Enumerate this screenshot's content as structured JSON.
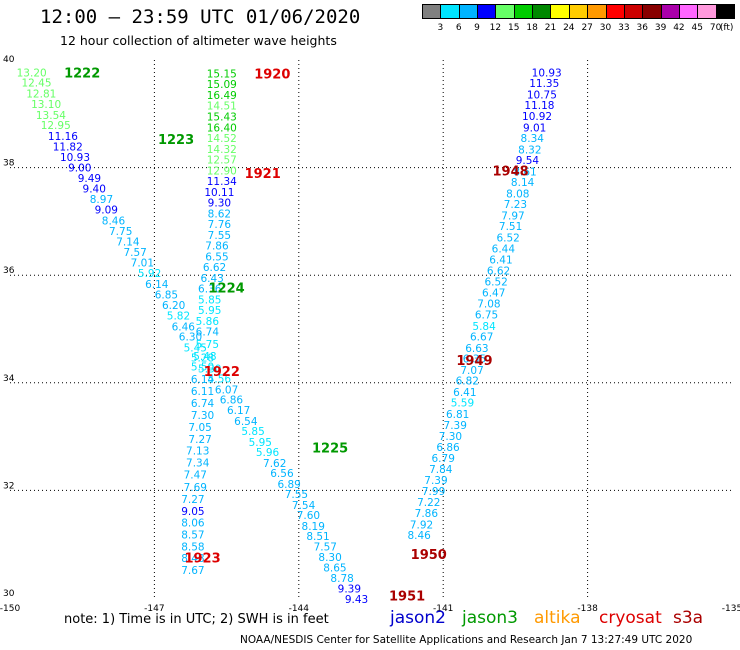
{
  "header": {
    "title": "12:00 – 23:59 UTC 01/06/2020",
    "subtitle": "12 hour collection of altimeter wave heights"
  },
  "color_scale": {
    "labels": [
      "3",
      "6",
      "9",
      "12",
      "15",
      "18",
      "21",
      "24",
      "27",
      "30",
      "33",
      "36",
      "39",
      "42",
      "45",
      "70",
      "(ft)"
    ],
    "colors": [
      "#808080",
      "#00e5ff",
      "#00b4ff",
      "#0000ff",
      "#66ff66",
      "#00cc00",
      "#008800",
      "#ffff00",
      "#ffcc00",
      "#ff9900",
      "#ff0000",
      "#cc0000",
      "#880000",
      "#aa00aa",
      "#ff66ff",
      "#ff99dd",
      "#000000"
    ]
  },
  "footer": {
    "note": "note: 1) Time is in UTC; 2) SWH is in feet",
    "legend": [
      {
        "name": "jason2",
        "color": "#0000cc"
      },
      {
        "name": "jason3",
        "color": "#009900"
      },
      {
        "name": "altika",
        "color": "#ff9900"
      },
      {
        "name": "cryosat",
        "color": "#dd0000"
      },
      {
        "name": "s3a",
        "color": "#aa0000"
      }
    ],
    "credit": "NOAA/NESDIS Center for Satellite Applications and Research    Jan  7 13:27:49 UTC 2020"
  },
  "chart_data": {
    "type": "scatter",
    "title": "12:00 – 23:59 UTC 01/06/2020",
    "xlabel": "",
    "ylabel": "",
    "xlim": [
      -150,
      -135
    ],
    "ylim": [
      30,
      40
    ],
    "x_ticks": [
      -150,
      -147,
      -144,
      -141,
      -138,
      -135
    ],
    "x_tick_labels": [
      "-150",
      "-147",
      "-144",
      "-141",
      "-138",
      "-135"
    ],
    "y_ticks": [
      30,
      32,
      34,
      36,
      38,
      40
    ],
    "y_tick_labels": [
      "30",
      "32",
      "34",
      "36",
      "38",
      "40"
    ],
    "grid": "dotted",
    "time_labels": [
      {
        "text": "1222",
        "lon": -148.5,
        "lat": 39.77,
        "color": "#009900"
      },
      {
        "text": "1223",
        "lon": -146.55,
        "lat": 38.53,
        "color": "#009900"
      },
      {
        "text": "1224",
        "lon": -145.5,
        "lat": 35.77,
        "color": "#009900"
      },
      {
        "text": "1225",
        "lon": -143.35,
        "lat": 32.8,
        "color": "#009900"
      },
      {
        "text": "1920",
        "lon": -144.55,
        "lat": 39.75,
        "color": "#dd0000"
      },
      {
        "text": "1921",
        "lon": -144.75,
        "lat": 37.9,
        "color": "#dd0000"
      },
      {
        "text": "1922",
        "lon": -145.6,
        "lat": 34.22,
        "color": "#dd0000"
      },
      {
        "text": "1923",
        "lon": -146.0,
        "lat": 30.75,
        "color": "#dd0000"
      },
      {
        "text": "1948",
        "lon": -139.6,
        "lat": 37.95,
        "color": "#aa0000"
      },
      {
        "text": "1949",
        "lon": -140.35,
        "lat": 34.42,
        "color": "#aa0000"
      },
      {
        "text": "1950",
        "lon": -141.3,
        "lat": 30.82,
        "color": "#aa0000"
      },
      {
        "text": "1951",
        "lon": -141.75,
        "lat": 30.05,
        "color": "#aa0000"
      }
    ],
    "series": [
      {
        "name": "jason3",
        "color_by_value": true,
        "points": [
          {
            "lon": -149.55,
            "lat": 39.77,
            "swh": 13.2
          },
          {
            "lon": -149.45,
            "lat": 39.58,
            "swh": 12.45
          },
          {
            "lon": -149.35,
            "lat": 39.38,
            "swh": 12.81
          },
          {
            "lon": -149.25,
            "lat": 39.18,
            "swh": 13.1
          },
          {
            "lon": -149.15,
            "lat": 38.98,
            "swh": 13.54
          },
          {
            "lon": -149.05,
            "lat": 38.79,
            "swh": 12.95
          },
          {
            "lon": -148.9,
            "lat": 38.59,
            "swh": 11.16
          },
          {
            "lon": -148.8,
            "lat": 38.39,
            "swh": 11.82
          },
          {
            "lon": -148.65,
            "lat": 38.2,
            "swh": 10.93
          },
          {
            "lon": -148.55,
            "lat": 38.0,
            "swh": 9.0
          },
          {
            "lon": -148.35,
            "lat": 37.81,
            "swh": 9.49
          },
          {
            "lon": -148.25,
            "lat": 37.61,
            "swh": 9.4
          },
          {
            "lon": -148.1,
            "lat": 37.42,
            "swh": 8.97
          },
          {
            "lon": -148.0,
            "lat": 37.22,
            "swh": 9.09
          },
          {
            "lon": -147.85,
            "lat": 37.02,
            "swh": 8.46
          },
          {
            "lon": -147.7,
            "lat": 36.82,
            "swh": 7.75
          },
          {
            "lon": -147.55,
            "lat": 36.63,
            "swh": 7.14
          },
          {
            "lon": -147.4,
            "lat": 36.43,
            "swh": 7.57
          },
          {
            "lon": -147.25,
            "lat": 36.24,
            "swh": 7.01
          },
          {
            "lon": -147.1,
            "lat": 36.04,
            "swh": 5.92
          },
          {
            "lon": -146.95,
            "lat": 35.84,
            "swh": 6.14
          },
          {
            "lon": -146.75,
            "lat": 35.64,
            "swh": 6.85
          },
          {
            "lon": -146.6,
            "lat": 35.45,
            "swh": 6.2
          },
          {
            "lon": -146.5,
            "lat": 35.25,
            "swh": 5.82
          },
          {
            "lon": -146.4,
            "lat": 35.05,
            "swh": 6.46
          },
          {
            "lon": -146.25,
            "lat": 34.86,
            "swh": 6.3
          },
          {
            "lon": -146.15,
            "lat": 34.66,
            "swh": 5.45
          },
          {
            "lon": -146.0,
            "lat": 34.47,
            "swh": 5.28
          },
          {
            "lon": -145.85,
            "lat": 34.27,
            "swh": 5.3
          },
          {
            "lon": -145.65,
            "lat": 34.08,
            "swh": 5.56
          },
          {
            "lon": -145.5,
            "lat": 33.88,
            "swh": 6.07
          },
          {
            "lon": -145.4,
            "lat": 33.69,
            "swh": 6.86
          },
          {
            "lon": -145.25,
            "lat": 33.49,
            "swh": 6.17
          },
          {
            "lon": -145.1,
            "lat": 33.29,
            "swh": 6.54
          },
          {
            "lon": -144.95,
            "lat": 33.1,
            "swh": 5.85
          },
          {
            "lon": -144.8,
            "lat": 32.9,
            "swh": 5.95
          },
          {
            "lon": -144.65,
            "lat": 32.71,
            "swh": 5.96
          },
          {
            "lon": -144.5,
            "lat": 32.51,
            "swh": 7.62
          },
          {
            "lon": -144.35,
            "lat": 32.32,
            "swh": 6.56
          },
          {
            "lon": -144.2,
            "lat": 32.12,
            "swh": 6.89
          },
          {
            "lon": -144.05,
            "lat": 31.93,
            "swh": 7.55
          },
          {
            "lon": -143.9,
            "lat": 31.73,
            "swh": 7.54
          },
          {
            "lon": -143.8,
            "lat": 31.54,
            "swh": 7.6
          },
          {
            "lon": -143.7,
            "lat": 31.34,
            "swh": 8.19
          },
          {
            "lon": -143.6,
            "lat": 31.15,
            "swh": 8.51
          },
          {
            "lon": -143.45,
            "lat": 30.96,
            "swh": 7.57
          },
          {
            "lon": -143.35,
            "lat": 30.76,
            "swh": 8.3
          },
          {
            "lon": -143.25,
            "lat": 30.57,
            "swh": 8.65
          },
          {
            "lon": -143.1,
            "lat": 30.37,
            "swh": 8.78
          },
          {
            "lon": -142.95,
            "lat": 30.18,
            "swh": 9.39
          },
          {
            "lon": -142.8,
            "lat": 29.98,
            "swh": 9.43
          }
        ]
      },
      {
        "name": "cryosat",
        "color_by_value": true,
        "points": [
          {
            "lon": -145.6,
            "lat": 39.75,
            "swh": 15.15
          },
          {
            "lon": -145.6,
            "lat": 39.55,
            "swh": 15.09
          },
          {
            "lon": -145.6,
            "lat": 39.35,
            "swh": 16.49
          },
          {
            "lon": -145.6,
            "lat": 39.15,
            "swh": 14.51
          },
          {
            "lon": -145.6,
            "lat": 38.95,
            "swh": 15.43
          },
          {
            "lon": -145.6,
            "lat": 38.75,
            "swh": 16.4
          },
          {
            "lon": -145.6,
            "lat": 38.55,
            "swh": 14.52
          },
          {
            "lon": -145.6,
            "lat": 38.35,
            "swh": 14.32
          },
          {
            "lon": -145.6,
            "lat": 38.15,
            "swh": 12.57
          },
          {
            "lon": -145.6,
            "lat": 37.95,
            "swh": 12.9
          },
          {
            "lon": -145.6,
            "lat": 37.75,
            "swh": 11.34
          },
          {
            "lon": -145.65,
            "lat": 37.55,
            "swh": 10.11
          },
          {
            "lon": -145.65,
            "lat": 37.35,
            "swh": 9.3
          },
          {
            "lon": -145.65,
            "lat": 37.15,
            "swh": 8.62
          },
          {
            "lon": -145.65,
            "lat": 36.95,
            "swh": 7.76
          },
          {
            "lon": -145.65,
            "lat": 36.75,
            "swh": 7.55
          },
          {
            "lon": -145.7,
            "lat": 36.55,
            "swh": 7.86
          },
          {
            "lon": -145.7,
            "lat": 36.35,
            "swh": 6.55
          },
          {
            "lon": -145.75,
            "lat": 36.15,
            "swh": 6.62
          },
          {
            "lon": -145.8,
            "lat": 35.95,
            "swh": 6.43
          },
          {
            "lon": -145.85,
            "lat": 35.75,
            "swh": 6.36
          },
          {
            "lon": -145.85,
            "lat": 35.55,
            "swh": 5.85
          },
          {
            "lon": -145.85,
            "lat": 35.35,
            "swh": 5.95
          },
          {
            "lon": -145.9,
            "lat": 35.15,
            "swh": 5.86
          },
          {
            "lon": -145.9,
            "lat": 34.95,
            "swh": 6.74
          },
          {
            "lon": -145.9,
            "lat": 34.72,
            "swh": 5.75
          },
          {
            "lon": -145.95,
            "lat": 34.5,
            "swh": 5.48
          },
          {
            "lon": -146.0,
            "lat": 34.3,
            "swh": 5.5
          },
          {
            "lon": -146.0,
            "lat": 34.07,
            "swh": 6.14
          },
          {
            "lon": -146.0,
            "lat": 33.85,
            "swh": 6.11
          },
          {
            "lon": -146.0,
            "lat": 33.62,
            "swh": 6.74
          },
          {
            "lon": -146.0,
            "lat": 33.4,
            "swh": 7.3
          },
          {
            "lon": -146.05,
            "lat": 33.18,
            "swh": 7.05
          },
          {
            "lon": -146.05,
            "lat": 32.96,
            "swh": 7.27
          },
          {
            "lon": -146.1,
            "lat": 32.74,
            "swh": 7.13
          },
          {
            "lon": -146.1,
            "lat": 32.52,
            "swh": 7.34
          },
          {
            "lon": -146.15,
            "lat": 32.3,
            "swh": 7.47
          },
          {
            "lon": -146.15,
            "lat": 32.06,
            "swh": 7.69
          },
          {
            "lon": -146.2,
            "lat": 31.84,
            "swh": 7.27
          },
          {
            "lon": -146.2,
            "lat": 31.62,
            "swh": 9.05
          },
          {
            "lon": -146.2,
            "lat": 31.4,
            "swh": 8.06
          },
          {
            "lon": -146.2,
            "lat": 31.18,
            "swh": 8.57
          },
          {
            "lon": -146.2,
            "lat": 30.96,
            "swh": 8.58
          },
          {
            "lon": -146.2,
            "lat": 30.74,
            "swh": 8.48
          },
          {
            "lon": -146.2,
            "lat": 30.52,
            "swh": 7.67
          }
        ]
      },
      {
        "name": "s3a",
        "color_by_value": true,
        "points": [
          {
            "lon": -138.85,
            "lat": 39.77,
            "swh": 10.93
          },
          {
            "lon": -138.9,
            "lat": 39.57,
            "swh": 11.35
          },
          {
            "lon": -138.95,
            "lat": 39.36,
            "swh": 10.75
          },
          {
            "lon": -139.0,
            "lat": 39.16,
            "swh": 11.18
          },
          {
            "lon": -139.05,
            "lat": 38.96,
            "swh": 10.92
          },
          {
            "lon": -139.1,
            "lat": 38.75,
            "swh": 9.01
          },
          {
            "lon": -139.15,
            "lat": 38.55,
            "swh": 8.34
          },
          {
            "lon": -139.2,
            "lat": 38.34,
            "swh": 8.32
          },
          {
            "lon": -139.25,
            "lat": 38.14,
            "swh": 9.54
          },
          {
            "lon": -139.3,
            "lat": 37.93,
            "swh": 8.61
          },
          {
            "lon": -139.35,
            "lat": 37.73,
            "swh": 8.14
          },
          {
            "lon": -139.45,
            "lat": 37.52,
            "swh": 8.08
          },
          {
            "lon": -139.5,
            "lat": 37.32,
            "swh": 7.23
          },
          {
            "lon": -139.55,
            "lat": 37.11,
            "swh": 7.97
          },
          {
            "lon": -139.6,
            "lat": 36.91,
            "swh": 7.51
          },
          {
            "lon": -139.65,
            "lat": 36.7,
            "swh": 6.52
          },
          {
            "lon": -139.75,
            "lat": 36.5,
            "swh": 6.44
          },
          {
            "lon": -139.8,
            "lat": 36.29,
            "swh": 6.41
          },
          {
            "lon": -139.85,
            "lat": 36.09,
            "swh": 6.62
          },
          {
            "lon": -139.9,
            "lat": 35.88,
            "swh": 6.52
          },
          {
            "lon": -139.95,
            "lat": 35.68,
            "swh": 6.47
          },
          {
            "lon": -140.05,
            "lat": 35.47,
            "swh": 7.08
          },
          {
            "lon": -140.1,
            "lat": 35.27,
            "swh": 6.75
          },
          {
            "lon": -140.15,
            "lat": 35.06,
            "swh": 5.84
          },
          {
            "lon": -140.2,
            "lat": 34.86,
            "swh": 6.67
          },
          {
            "lon": -140.3,
            "lat": 34.65,
            "swh": 6.63
          },
          {
            "lon": -140.35,
            "lat": 34.45,
            "swh": 6.35
          },
          {
            "lon": -140.4,
            "lat": 34.24,
            "swh": 7.07
          },
          {
            "lon": -140.5,
            "lat": 34.04,
            "swh": 6.82
          },
          {
            "lon": -140.55,
            "lat": 33.83,
            "swh": 6.41
          },
          {
            "lon": -140.6,
            "lat": 33.63,
            "swh": 5.59
          },
          {
            "lon": -140.7,
            "lat": 33.42,
            "swh": 6.81
          },
          {
            "lon": -140.75,
            "lat": 33.22,
            "swh": 7.39
          },
          {
            "lon": -140.85,
            "lat": 33.01,
            "swh": 7.3
          },
          {
            "lon": -140.9,
            "lat": 32.81,
            "swh": 6.86
          },
          {
            "lon": -141.0,
            "lat": 32.6,
            "swh": 6.79
          },
          {
            "lon": -141.05,
            "lat": 32.4,
            "swh": 7.84
          },
          {
            "lon": -141.15,
            "lat": 32.19,
            "swh": 7.39
          },
          {
            "lon": -141.2,
            "lat": 31.99,
            "swh": 7.99
          },
          {
            "lon": -141.3,
            "lat": 31.78,
            "swh": 7.22
          },
          {
            "lon": -141.35,
            "lat": 31.58,
            "swh": 7.86
          },
          {
            "lon": -141.45,
            "lat": 31.37,
            "swh": 7.92
          },
          {
            "lon": -141.5,
            "lat": 31.17,
            "swh": 8.46
          }
        ]
      }
    ]
  }
}
